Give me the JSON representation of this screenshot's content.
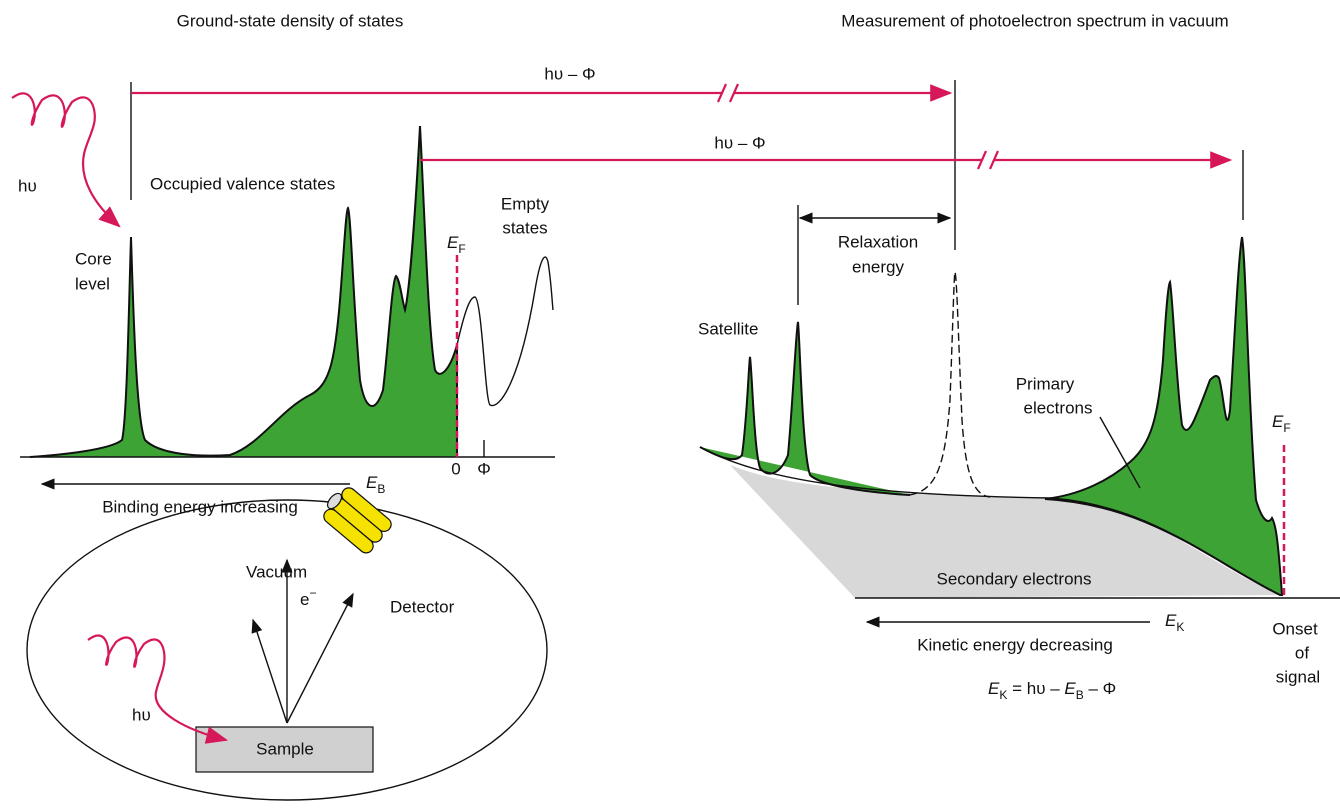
{
  "left_panel": {
    "title": "Ground-state density of states",
    "photon": "hυ",
    "occupied": "Occupied valence states",
    "core_level": [
      "Core",
      "level"
    ],
    "empty_states": [
      "Empty",
      "states"
    ],
    "fermi": {
      "symbol": "E",
      "sub": "F"
    },
    "axis_zero": "0",
    "axis_phi": "Φ",
    "axis_symbol": {
      "symbol": "E",
      "sub": "B"
    },
    "axis_caption": "Binding energy increasing"
  },
  "arrows": [
    "hυ – Φ",
    "hυ – Φ"
  ],
  "vacuum_chamber": {
    "vacuum": "Vacuum",
    "electron": {
      "symbol": "e",
      "sup": "−"
    },
    "detector": "Detector",
    "photon": "hυ",
    "sample": "Sample"
  },
  "right_panel": {
    "title": "Measurement of photoelectron spectrum in vacuum",
    "relaxation": [
      "Relaxation",
      "energy"
    ],
    "satellite": "Satellite",
    "primary": [
      "Primary",
      "electrons"
    ],
    "fermi": {
      "symbol": "E",
      "sub": "F"
    },
    "secondary": "Secondary electrons",
    "axis_symbol": {
      "symbol": "E",
      "sub": "K"
    },
    "axis_caption": "Kinetic energy decreasing",
    "onset": [
      "Onset",
      "of",
      "signal"
    ],
    "equation": [
      "E",
      "K",
      " = hυ – ",
      "E",
      "B",
      " – Φ"
    ]
  }
}
